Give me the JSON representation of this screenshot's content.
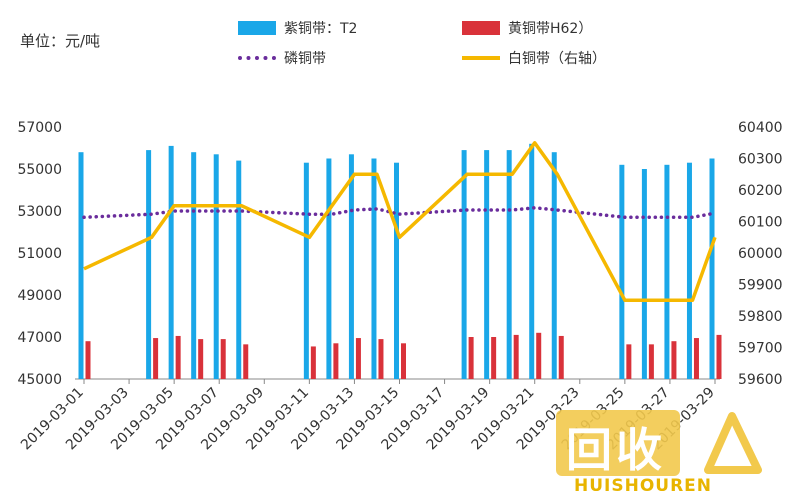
{
  "unit_label": "单位：元/吨",
  "colors": {
    "purple_copper": "#1aa7e8",
    "brass": "#d9323a",
    "phosphor_bronze": "#6a2d9c",
    "white_copper": "#f5b800",
    "axis": "#888888",
    "text": "#333333"
  },
  "watermark": {
    "cn": "回收",
    "en": "HUISHOUREN"
  },
  "chart_data": {
    "type": "bar",
    "categories": [
      "2019-03-01",
      "2019-03-02",
      "2019-03-03",
      "2019-03-04",
      "2019-03-05",
      "2019-03-06",
      "2019-03-07",
      "2019-03-08",
      "2019-03-09",
      "2019-03-10",
      "2019-03-11",
      "2019-03-12",
      "2019-03-13",
      "2019-03-14",
      "2019-03-15",
      "2019-03-16",
      "2019-03-17",
      "2019-03-18",
      "2019-03-19",
      "2019-03-20",
      "2019-03-21",
      "2019-03-22",
      "2019-03-23",
      "2019-03-24",
      "2019-03-25",
      "2019-03-26",
      "2019-03-27",
      "2019-03-28",
      "2019-03-29"
    ],
    "x_tick_labels": [
      "2019-03-01",
      "2019-03-03",
      "2019-03-05",
      "2019-03-07",
      "2019-03-09",
      "2019-03-11",
      "2019-03-13",
      "2019-03-15",
      "2019-03-17",
      "2019-03-19",
      "2019-03-21",
      "2019-03-23",
      "2019-03-25",
      "2019-03-27",
      "2019-03-29"
    ],
    "y_left": {
      "min": 45000,
      "max": 57000,
      "ticks": [
        45000,
        47000,
        49000,
        51000,
        53000,
        55000,
        57000
      ]
    },
    "y_right": {
      "min": 59600,
      "max": 60400,
      "ticks": [
        59600,
        59700,
        59800,
        59900,
        60000,
        60100,
        60200,
        60300,
        60400
      ]
    },
    "legend_position": "top",
    "grid": false,
    "series": [
      {
        "name": "紫铜带：T2",
        "kind": "bar",
        "axis": "left",
        "values": [
          55800,
          null,
          null,
          55900,
          56100,
          55800,
          55700,
          55400,
          null,
          null,
          55300,
          55500,
          55700,
          55500,
          55300,
          null,
          null,
          55900,
          55900,
          55900,
          56200,
          55800,
          null,
          null,
          55200,
          55000,
          55200,
          55300,
          55500
        ]
      },
      {
        "name": "黄铜带H62）",
        "kind": "bar",
        "axis": "left",
        "values": [
          46800,
          null,
          null,
          46950,
          47050,
          46900,
          46900,
          46650,
          null,
          null,
          46550,
          46700,
          46950,
          46900,
          46700,
          null,
          null,
          47000,
          47000,
          47100,
          47200,
          47050,
          null,
          null,
          46650,
          46650,
          46800,
          46950,
          47100
        ]
      },
      {
        "name": "磷铜带",
        "kind": "line",
        "style": "dotted",
        "axis": "left",
        "values": [
          52700,
          null,
          null,
          52850,
          53000,
          53000,
          53000,
          53000,
          null,
          null,
          52850,
          52850,
          53050,
          53100,
          52850,
          null,
          null,
          53050,
          53050,
          53050,
          53150,
          53050,
          null,
          null,
          52700,
          52700,
          52700,
          52700,
          52900
        ]
      },
      {
        "name": "白铜带（右轴）",
        "kind": "line",
        "style": "solid",
        "axis": "right",
        "values": [
          59950,
          null,
          null,
          60050,
          60150,
          60150,
          60150,
          60150,
          null,
          null,
          60050,
          60150,
          60250,
          60250,
          60050,
          null,
          null,
          60250,
          60250,
          60250,
          60350,
          60250,
          null,
          null,
          59850,
          59850,
          59850,
          59850,
          60050
        ]
      }
    ]
  }
}
